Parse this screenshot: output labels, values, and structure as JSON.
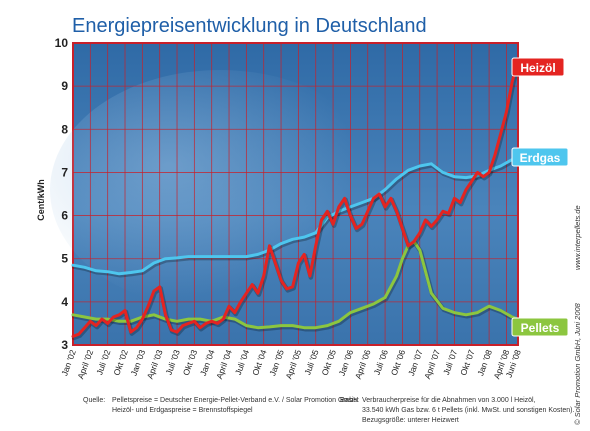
{
  "colors": {
    "plot_bg": "#3f78b0",
    "plot_border": "#c8202a",
    "grid": "#c8202a",
    "heizoel": "#e42421",
    "erdgas": "#4ec6ee",
    "pellets": "#8cc63f",
    "title": "#1f5fa8"
  },
  "chart_data": {
    "type": "line",
    "title": "Energiepreisentwicklung in Deutschland",
    "ylabel": "Cent/kWh",
    "ylim": [
      3,
      10
    ],
    "yticks": [
      "3",
      "4",
      "5",
      "6",
      "7",
      "8",
      "9",
      "10"
    ],
    "x_ticks": [
      "Jan '02",
      "April '02",
      "Juli '02",
      "Okt '02",
      "Jan '03",
      "April '03",
      "Juli '03",
      "Okt '03",
      "Jan '04",
      "April '04",
      "Juli '04",
      "Okt '04",
      "Jan '05",
      "April '05",
      "Juli '05",
      "Okt '05",
      "Jan '06",
      "April '06",
      "Juli '06",
      "Okt '06",
      "Jan '07",
      "April '07",
      "Juli '07",
      "Okt '07",
      "Jan '08",
      "April '08",
      "Juni '08"
    ],
    "x_months": [
      0,
      3,
      6,
      9,
      12,
      15,
      18,
      21,
      24,
      27,
      30,
      33,
      36,
      39,
      42,
      45,
      48,
      51,
      54,
      57,
      60,
      63,
      66,
      69,
      72,
      75,
      77
    ],
    "grid": true,
    "series": [
      {
        "name": "Heizöl",
        "x": [
          0,
          1,
          2,
          3,
          4,
          5,
          6,
          7,
          8,
          9,
          10,
          11,
          12,
          13,
          14,
          15,
          16,
          17,
          18,
          19,
          20,
          21,
          22,
          23,
          24,
          25,
          26,
          27,
          28,
          29,
          30,
          31,
          32,
          33,
          34,
          35,
          36,
          37,
          38,
          39,
          40,
          41,
          42,
          43,
          44,
          45,
          46,
          47,
          48,
          49,
          50,
          51,
          52,
          53,
          54,
          55,
          56,
          57,
          58,
          59,
          60,
          61,
          62,
          63,
          64,
          65,
          66,
          67,
          68,
          69,
          70,
          71,
          72,
          73,
          74,
          75,
          76,
          77
        ],
        "values": [
          3.2,
          3.25,
          3.4,
          3.55,
          3.45,
          3.6,
          3.5,
          3.65,
          3.7,
          3.8,
          3.3,
          3.4,
          3.6,
          3.9,
          4.25,
          4.35,
          3.7,
          3.35,
          3.3,
          3.45,
          3.5,
          3.55,
          3.4,
          3.5,
          3.55,
          3.5,
          3.6,
          3.9,
          3.75,
          4.0,
          4.2,
          4.4,
          4.2,
          4.6,
          5.3,
          4.9,
          4.5,
          4.3,
          4.35,
          4.9,
          5.1,
          4.6,
          5.3,
          5.9,
          6.1,
          5.8,
          6.2,
          6.4,
          6.0,
          5.7,
          5.8,
          6.1,
          6.4,
          6.5,
          6.2,
          6.4,
          6.1,
          5.7,
          5.3,
          5.4,
          5.6,
          5.9,
          5.75,
          5.9,
          6.1,
          6.05,
          6.4,
          6.3,
          6.6,
          6.8,
          7.0,
          6.9,
          7.0,
          7.4,
          7.9,
          8.4,
          9.1,
          9.6
        ]
      },
      {
        "name": "Erdgas",
        "x": [
          0,
          2,
          4,
          6,
          8,
          10,
          12,
          14,
          16,
          18,
          20,
          22,
          24,
          26,
          28,
          30,
          32,
          34,
          36,
          38,
          40,
          42,
          44,
          46,
          48,
          50,
          52,
          54,
          56,
          58,
          60,
          62,
          64,
          66,
          68,
          70,
          72,
          74,
          76,
          77
        ],
        "values": [
          4.85,
          4.8,
          4.72,
          4.7,
          4.65,
          4.68,
          4.72,
          4.9,
          5.0,
          5.02,
          5.05,
          5.05,
          5.05,
          5.05,
          5.05,
          5.05,
          5.1,
          5.2,
          5.35,
          5.45,
          5.5,
          5.6,
          5.95,
          6.1,
          6.2,
          6.3,
          6.4,
          6.6,
          6.85,
          7.05,
          7.15,
          7.2,
          7.0,
          6.9,
          6.88,
          6.92,
          7.05,
          7.15,
          7.3,
          7.38
        ]
      },
      {
        "name": "Pellets",
        "x": [
          0,
          2,
          4,
          6,
          8,
          10,
          12,
          14,
          16,
          18,
          20,
          22,
          24,
          26,
          28,
          30,
          32,
          34,
          36,
          38,
          40,
          42,
          44,
          46,
          48,
          50,
          52,
          54,
          56,
          57,
          58,
          59,
          60,
          62,
          64,
          66,
          68,
          70,
          72,
          74,
          76,
          77
        ],
        "values": [
          3.7,
          3.65,
          3.6,
          3.6,
          3.55,
          3.55,
          3.65,
          3.7,
          3.6,
          3.55,
          3.6,
          3.6,
          3.55,
          3.65,
          3.6,
          3.45,
          3.4,
          3.42,
          3.45,
          3.45,
          3.4,
          3.4,
          3.45,
          3.55,
          3.75,
          3.85,
          3.95,
          4.1,
          4.6,
          5.0,
          5.3,
          5.4,
          5.2,
          4.2,
          3.85,
          3.75,
          3.7,
          3.75,
          3.9,
          3.8,
          3.65,
          3.6
        ]
      }
    ]
  },
  "notes": {
    "source_label": "Quelle:",
    "source_line1": "Pelletspreise = Deutscher Energie-Pellet-Verband e.V. / Solar Promotion GmbH",
    "source_line2": "Heizöl- und Erdgaspreise = Brennstoffspiegel",
    "basis_label": "Basis:",
    "basis_line1": "Verbraucherpreise für die Abnahmen von 3.000 l Heizöl,",
    "basis_line2": "33.540 kWh Gas bzw. 6 t Pellets (inkl. MwSt. und sonstigen Kosten).",
    "basis_line3": "Bezugsgröße: unterer Heizwert",
    "side_url": "www.interpellets.de",
    "side_copyright": "© Solar Promotion GmbH, Juni 2008"
  }
}
